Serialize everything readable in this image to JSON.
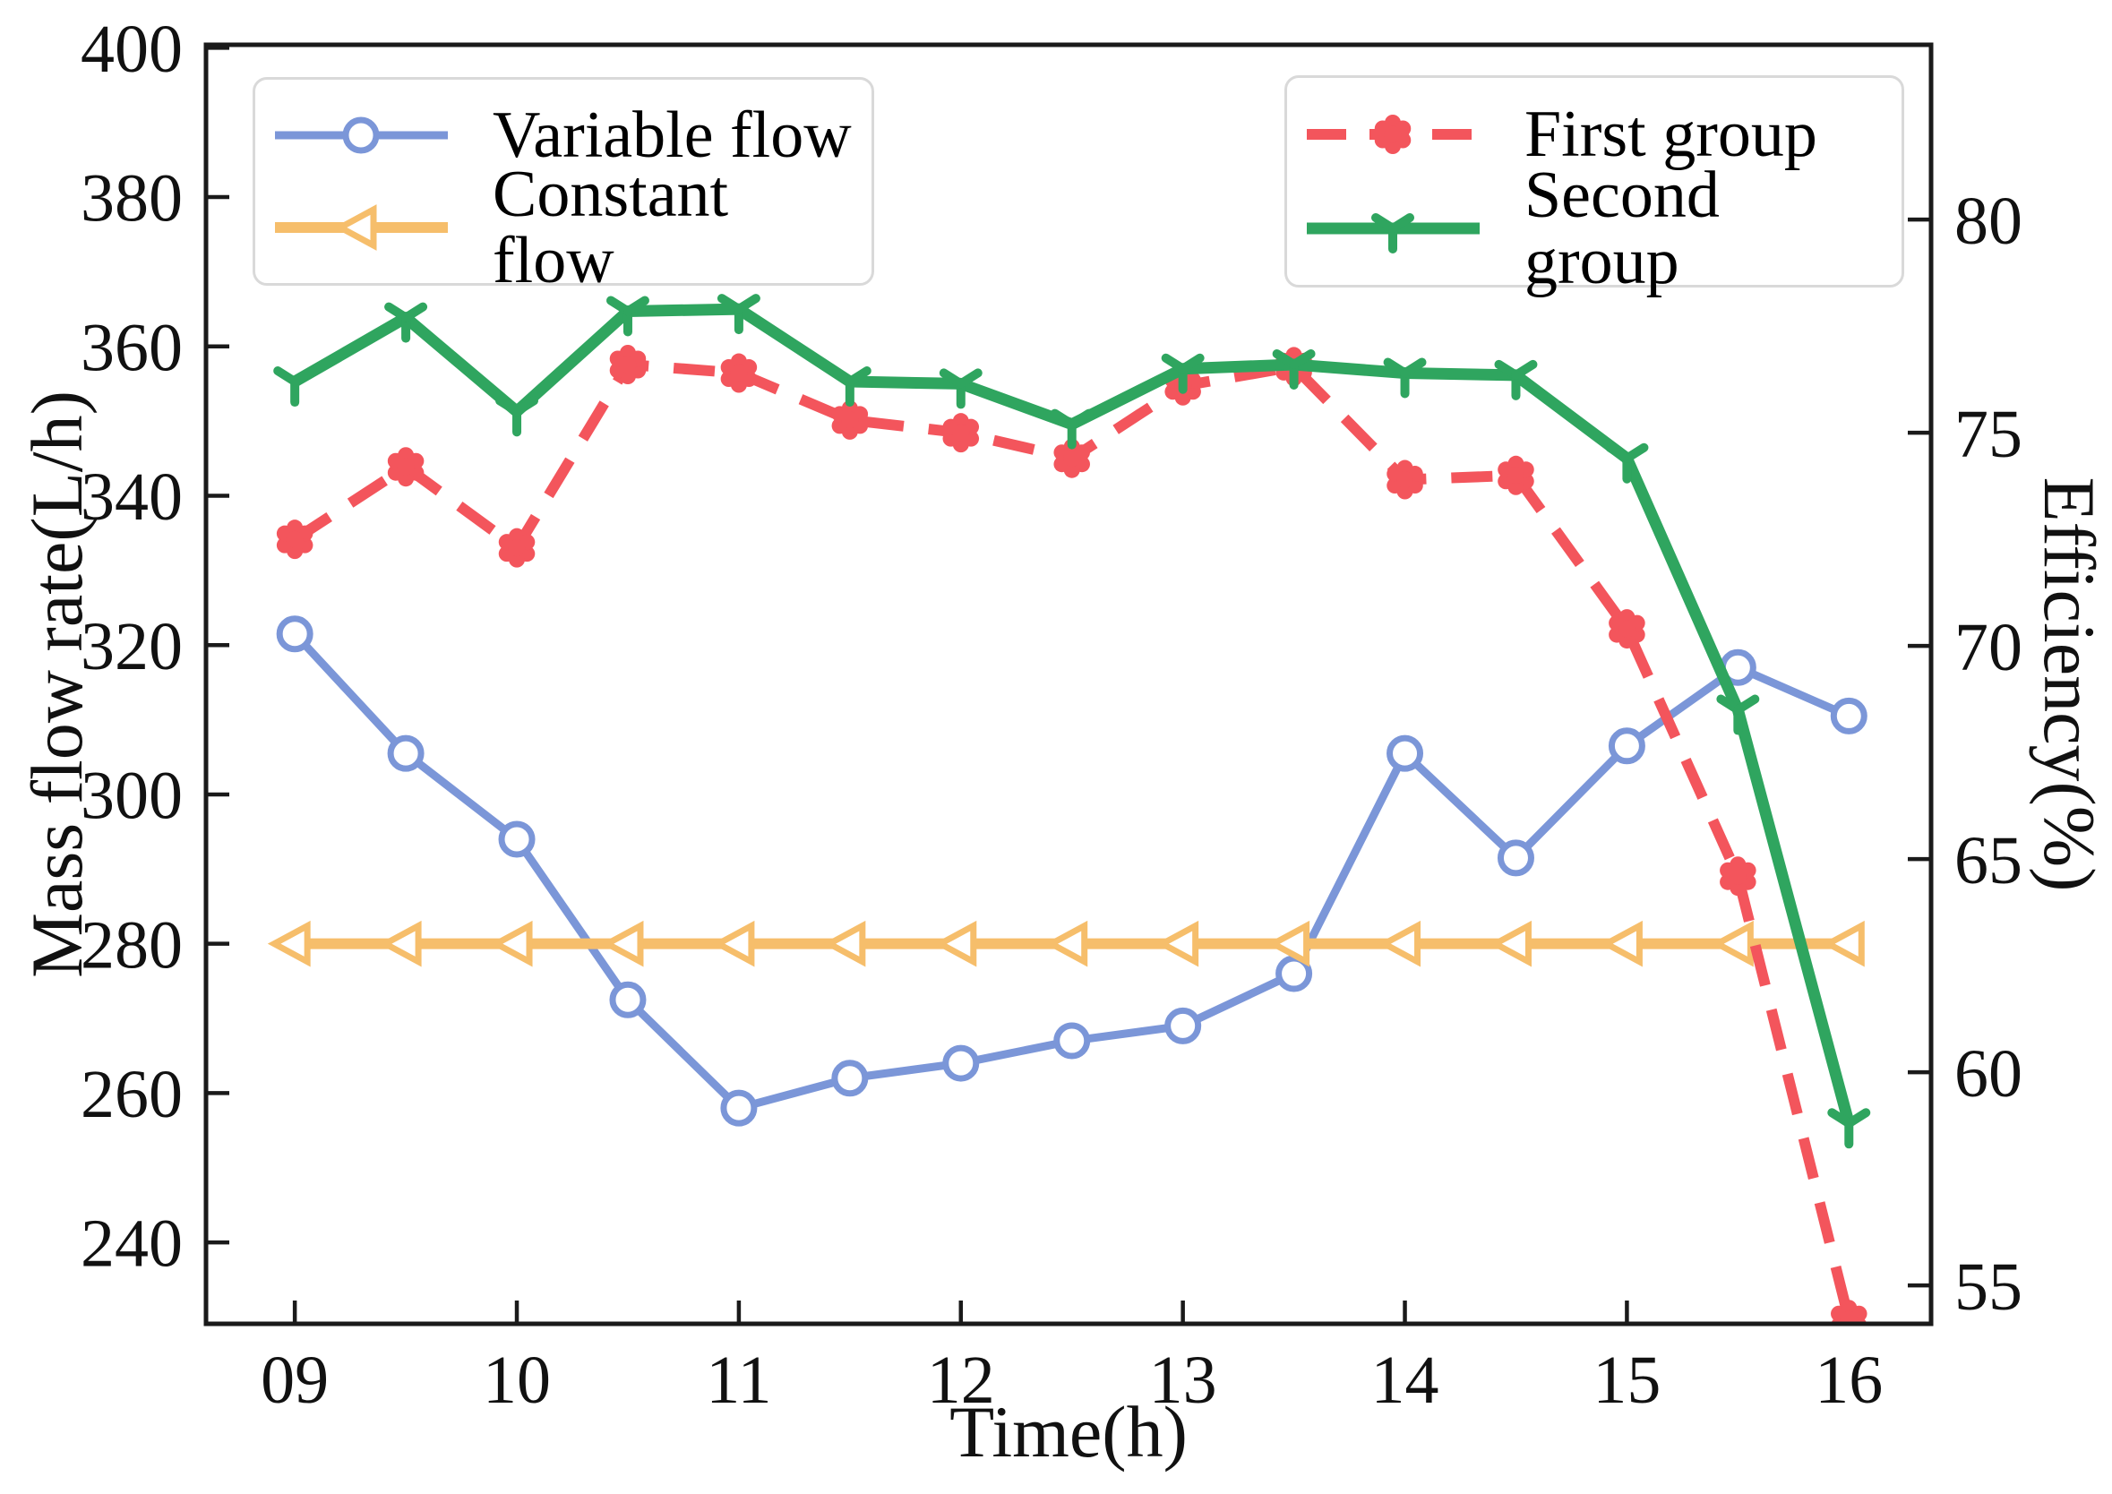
{
  "chart_data": {
    "type": "line",
    "title": "",
    "xlabel": "Time(h)",
    "x": [
      9,
      9.5,
      10,
      10.5,
      11,
      11.5,
      12,
      12.5,
      13,
      13.5,
      14,
      14.5,
      15,
      15.5,
      16
    ],
    "x_range": [
      8.6,
      16.37
    ],
    "x_ticks": {
      "values": [
        9,
        10,
        11,
        12,
        13,
        14,
        15,
        16
      ],
      "labels": [
        "09",
        "10",
        "11",
        "12",
        "13",
        "14",
        "15",
        "16"
      ]
    },
    "left_axis": {
      "label": "Mass flow rate(L/h)",
      "ticks": [
        240,
        260,
        280,
        300,
        320,
        340,
        360,
        380,
        400
      ],
      "range": [
        229.1,
        400.4
      ]
    },
    "right_axis": {
      "label": "Efficiency(%)",
      "ticks": [
        55,
        60,
        65,
        70,
        75,
        80
      ],
      "range": [
        54.1,
        84.1
      ]
    },
    "series": [
      {
        "name": "Variable flow",
        "axis": "left",
        "color": "#7B96D8",
        "marker": "open-circle",
        "line": "solid",
        "values": [
          321.5,
          305.5,
          294,
          272.5,
          258,
          262,
          264,
          267,
          269,
          276,
          305.5,
          291.5,
          306.5,
          317,
          310.5
        ]
      },
      {
        "name": "Constant flow",
        "axis": "left",
        "color": "#F6BE6B",
        "marker": "open-triangle-left",
        "line": "solid",
        "values": [
          280,
          280,
          280,
          280,
          280,
          280,
          280,
          280,
          280,
          280,
          280,
          280,
          280,
          280,
          280
        ]
      },
      {
        "name": "First group",
        "axis": "right",
        "color": "#F3555C",
        "marker": "flower",
        "line": "dashed",
        "values": [
          72.5,
          74.2,
          72.3,
          76.6,
          76.4,
          75.3,
          75.0,
          74.4,
          76.1,
          76.55,
          73.9,
          74.0,
          70.4,
          64.6,
          54.2
        ]
      },
      {
        "name": "Second group",
        "axis": "right",
        "color": "#2FA55F",
        "marker": "tri-down",
        "line": "solid",
        "values": [
          76.2,
          77.7,
          75.5,
          77.85,
          77.9,
          76.2,
          76.15,
          75.2,
          76.5,
          76.6,
          76.4,
          76.35,
          74.4,
          68.5,
          58.8
        ]
      }
    ],
    "legend_position": "upper-left-and-upper-right",
    "grid": false
  }
}
